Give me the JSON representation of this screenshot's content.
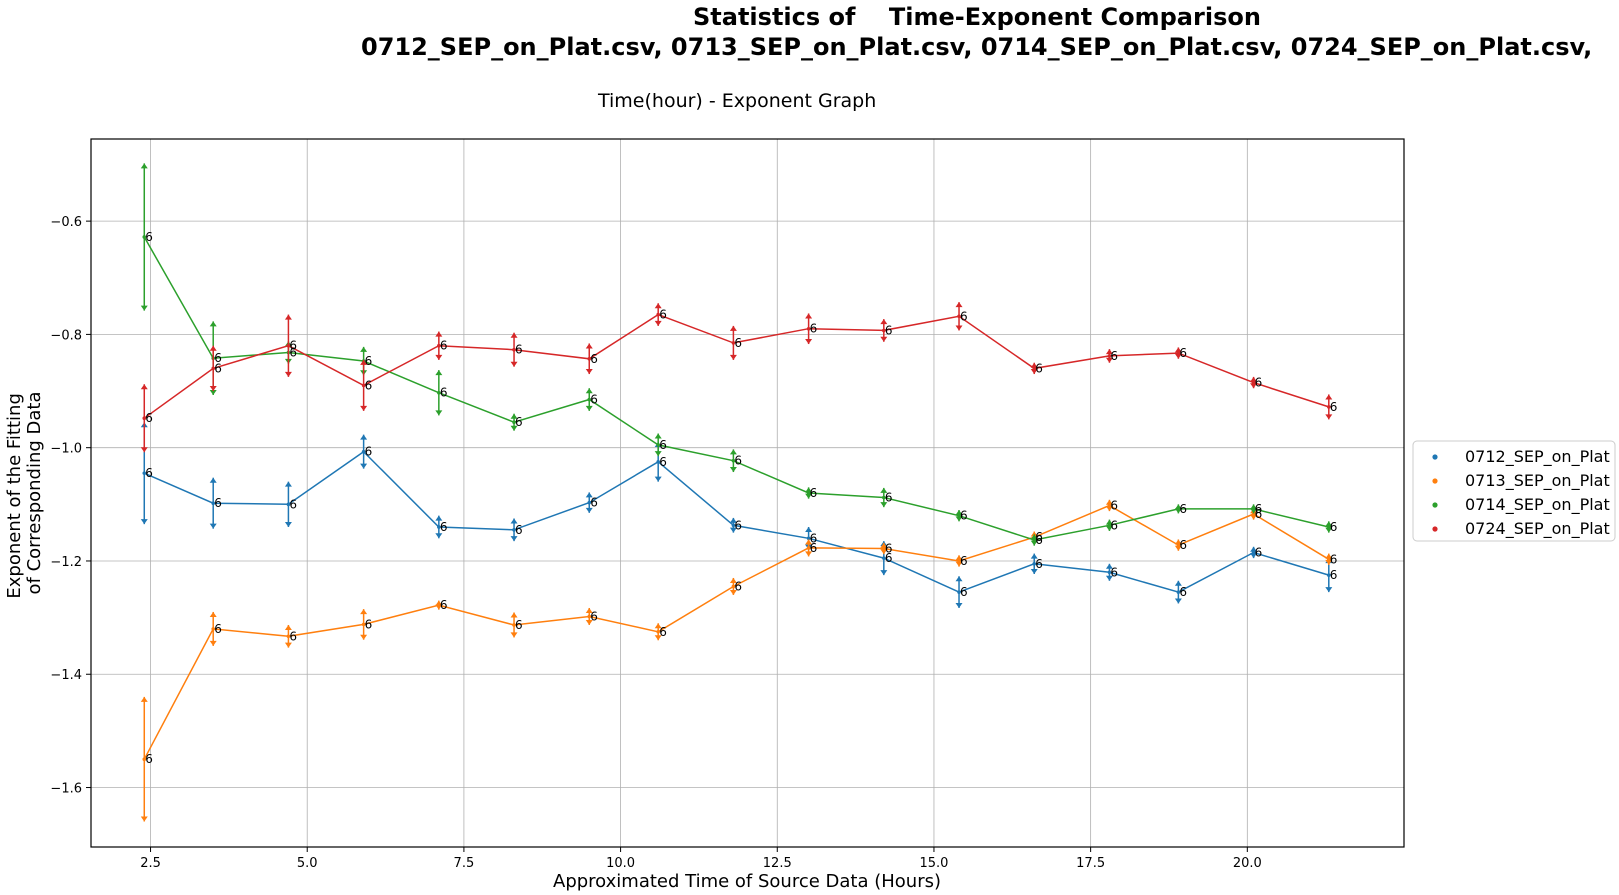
{
  "header": {
    "title_line_1": "Statistics of    Time-Exponent Comparison",
    "title_line_2": "0712_SEP_on_Plat.csv, 0713_SEP_on_Plat.csv, 0714_SEP_on_Plat.csv, 0724_SEP_on_Plat.csv,",
    "subtitle": "Time(hour) - Exponent Graph"
  },
  "chart_data": {
    "type": "line",
    "title": "Time(hour) - Exponent Graph",
    "xlabel": "Approximated Time of Source Data (Hours)",
    "ylabel_lines": [
      "Exponent of the Fitting",
      "of Corresponding Data"
    ],
    "xlim": [
      1.55,
      22.5
    ],
    "ylim": [
      -1.705,
      -0.455
    ],
    "xticks": [
      2.5,
      5.0,
      7.5,
      10.0,
      12.5,
      15.0,
      17.5,
      20.0
    ],
    "xtick_labels": [
      "2.5",
      "5.0",
      "7.5",
      "10.0",
      "12.5",
      "15.0",
      "17.5",
      "20.0"
    ],
    "yticks": [
      -1.6,
      -1.4,
      -1.2,
      -1.0,
      -0.8,
      -0.6
    ],
    "ytick_labels": [
      "−1.6",
      "−1.4",
      "−1.2",
      "−1.0",
      "−0.8",
      "−0.6"
    ],
    "grid": true,
    "legend_position": "right-center outside",
    "point_label": "6",
    "x": [
      2.4,
      3.5,
      4.7,
      5.9,
      7.1,
      8.3,
      9.5,
      10.6,
      11.8,
      13.0,
      14.2,
      15.4,
      16.6,
      17.8,
      18.9,
      20.1,
      21.3
    ],
    "series": [
      {
        "name": "0712_SEP_on_Plat",
        "color": "#1f77b4",
        "values": [
          -1.045,
          -1.098,
          -1.1,
          -1.007,
          -1.14,
          -1.145,
          -1.097,
          -1.025,
          -1.137,
          -1.16,
          -1.195,
          -1.255,
          -1.205,
          -1.22,
          -1.255,
          -1.185,
          -1.225
        ],
        "errors": [
          0.09,
          0.045,
          0.04,
          0.03,
          0.02,
          0.02,
          0.018,
          0.035,
          0.013,
          0.02,
          0.03,
          0.028,
          0.018,
          0.015,
          0.02,
          0.01,
          0.03
        ]
      },
      {
        "name": "0713_SEP_on_Plat",
        "color": "#ff7f0e",
        "values": [
          -1.55,
          -1.32,
          -1.333,
          -1.312,
          -1.278,
          -1.313,
          -1.298,
          -1.325,
          -1.245,
          -1.177,
          -1.178,
          -1.2,
          -1.158,
          -1.102,
          -1.172,
          -1.117,
          -1.197
        ],
        "errors": [
          0.11,
          0.03,
          0.02,
          0.027,
          0.008,
          0.022,
          0.015,
          0.015,
          0.015,
          0.015,
          0.01,
          0.01,
          0.01,
          0.01,
          0.01,
          0.01,
          0.01
        ]
      },
      {
        "name": "0714_SEP_on_Plat",
        "color": "#2ca02c",
        "values": [
          -0.628,
          -0.842,
          -0.832,
          -0.847,
          -0.903,
          -0.955,
          -0.915,
          -0.995,
          -1.023,
          -1.08,
          -1.088,
          -1.12,
          -1.163,
          -1.137,
          -1.108,
          -1.108,
          -1.14
        ],
        "errors": [
          0.13,
          0.065,
          0.02,
          0.025,
          0.04,
          0.015,
          0.02,
          0.02,
          0.02,
          0.01,
          0.017,
          0.01,
          0.01,
          0.01,
          0.008,
          0.008,
          0.01
        ]
      },
      {
        "name": "0724_SEP_on_Plat",
        "color": "#d62728",
        "values": [
          -0.948,
          -0.86,
          -0.82,
          -0.89,
          -0.82,
          -0.827,
          -0.843,
          -0.765,
          -0.815,
          -0.79,
          -0.793,
          -0.768,
          -0.86,
          -0.838,
          -0.833,
          -0.885,
          -0.928
        ],
        "errors": [
          0.06,
          0.04,
          0.055,
          0.045,
          0.025,
          0.03,
          0.027,
          0.02,
          0.03,
          0.027,
          0.02,
          0.025,
          0.01,
          0.012,
          0.01,
          0.01,
          0.022
        ]
      }
    ]
  }
}
